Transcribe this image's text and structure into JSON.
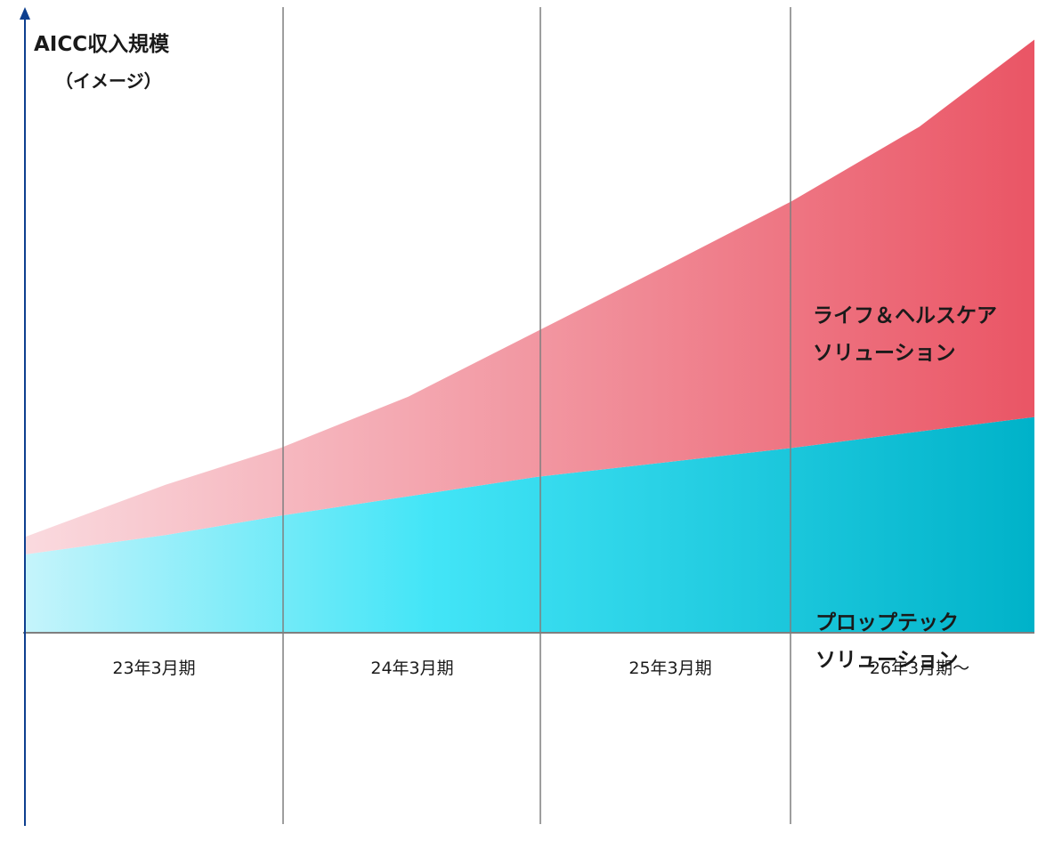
{
  "chart_data": {
    "type": "area",
    "stacked": true,
    "title": "",
    "ylabel": "AICC収入規模",
    "ylabel_note": "（イメージ）",
    "xlabel": "",
    "categories": [
      "23年3月期",
      "24年3月期",
      "25年3月期",
      "26年3月期～"
    ],
    "x": [
      0,
      0.55,
      1,
      1.5,
      2,
      2.5,
      3,
      3.5,
      3.95
    ],
    "series": [
      {
        "name": "プロップテック\nソリューション",
        "values": [
          0.8,
          1.0,
          1.2,
          1.4,
          1.6,
          1.75,
          1.9,
          2.07,
          2.22
        ],
        "color_start": "#c5f4fb",
        "color_mid": "#43e5f7",
        "color_end": "#00b2c9"
      },
      {
        "name": "ライフ＆ヘルスケア\nソリューション",
        "values": [
          0.18,
          0.52,
          0.7,
          1.03,
          1.5,
          2.02,
          2.55,
          3.15,
          3.9
        ],
        "color_start": "#fadadf",
        "color_end": "#ea5565"
      }
    ],
    "ylim": [
      0,
      6.4
    ],
    "grid": "vertical",
    "axis_color": "#0d3f8f",
    "grid_color": "#7f7f7f"
  }
}
